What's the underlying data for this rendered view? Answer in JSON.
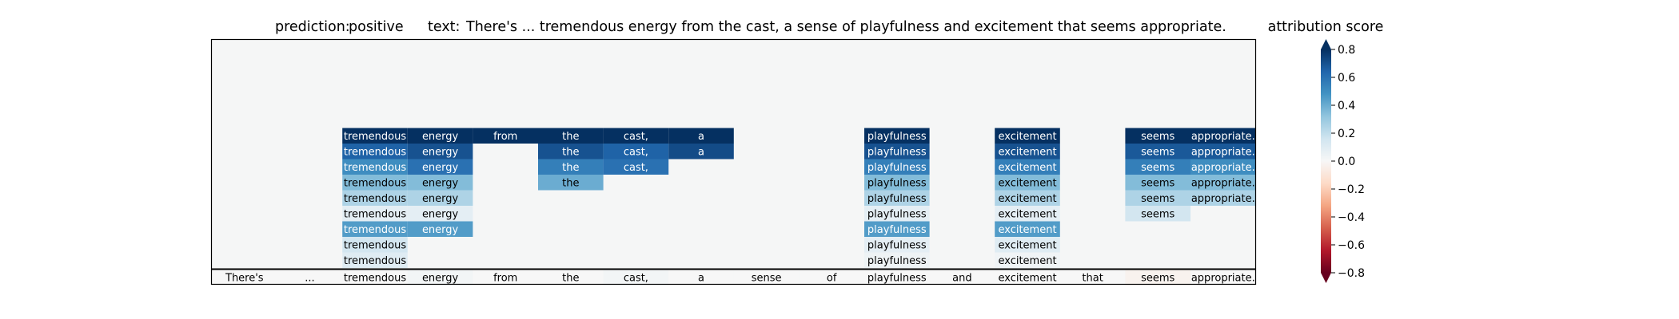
{
  "chart_data": {
    "type": "heatmap",
    "header": {
      "prediction_label": "prediction:",
      "prediction": "positive",
      "text_label": "text:",
      "text": "There's ... tremendous energy from the cast, a sense of playfulness and excitement that seems appropriate."
    },
    "tokens": [
      "There's",
      "...",
      "tremendous",
      "energy",
      "from",
      "the",
      "cast,",
      "a",
      "sense",
      "of",
      "playfulness",
      "and",
      "excitement",
      "that",
      "seems",
      "appropriate."
    ],
    "base_scores": [
      0.0,
      0.0,
      0.0,
      0.02,
      0.0,
      0.0,
      0.02,
      0.0,
      0.0,
      0.0,
      0.0,
      0.0,
      0.0,
      0.0,
      -0.03,
      0.0
    ],
    "layer_scores": [
      [
        null,
        null,
        0.1,
        null,
        null,
        null,
        null,
        null,
        null,
        null,
        0.04,
        null,
        0.03,
        null,
        null,
        null
      ],
      [
        null,
        null,
        0.15,
        null,
        null,
        null,
        null,
        null,
        null,
        null,
        0.08,
        null,
        0.1,
        null,
        null,
        null
      ],
      [
        null,
        null,
        0.45,
        0.45,
        null,
        null,
        null,
        null,
        null,
        null,
        0.45,
        null,
        0.45,
        null,
        null,
        null
      ],
      [
        null,
        null,
        0.08,
        0.08,
        null,
        null,
        null,
        null,
        null,
        null,
        0.08,
        null,
        0.08,
        null,
        0.15,
        null
      ],
      [
        null,
        null,
        0.25,
        0.25,
        null,
        null,
        null,
        null,
        null,
        null,
        0.25,
        null,
        0.25,
        null,
        0.25,
        0.25
      ],
      [
        null,
        null,
        0.35,
        0.35,
        null,
        0.4,
        null,
        null,
        null,
        null,
        0.35,
        null,
        0.35,
        null,
        0.35,
        0.35
      ],
      [
        null,
        null,
        0.5,
        0.6,
        null,
        0.55,
        0.6,
        null,
        null,
        null,
        0.55,
        null,
        0.55,
        null,
        0.55,
        0.5
      ],
      [
        null,
        null,
        0.65,
        0.7,
        null,
        0.7,
        0.65,
        0.72,
        null,
        null,
        0.7,
        null,
        0.7,
        null,
        0.68,
        0.68
      ],
      [
        null,
        null,
        0.8,
        0.8,
        0.8,
        0.8,
        0.8,
        0.8,
        null,
        null,
        0.8,
        null,
        0.8,
        null,
        0.8,
        0.8
      ]
    ],
    "colorbar": {
      "label": "attribution score",
      "ticks": [
        "0.8",
        "0.6",
        "0.4",
        "0.2",
        "0.0",
        "−0.2",
        "−0.4",
        "−0.6",
        "−0.8"
      ],
      "range": [
        -0.8,
        0.8
      ],
      "colormap": "RdBu"
    },
    "background_color": "#f5f6f6"
  }
}
